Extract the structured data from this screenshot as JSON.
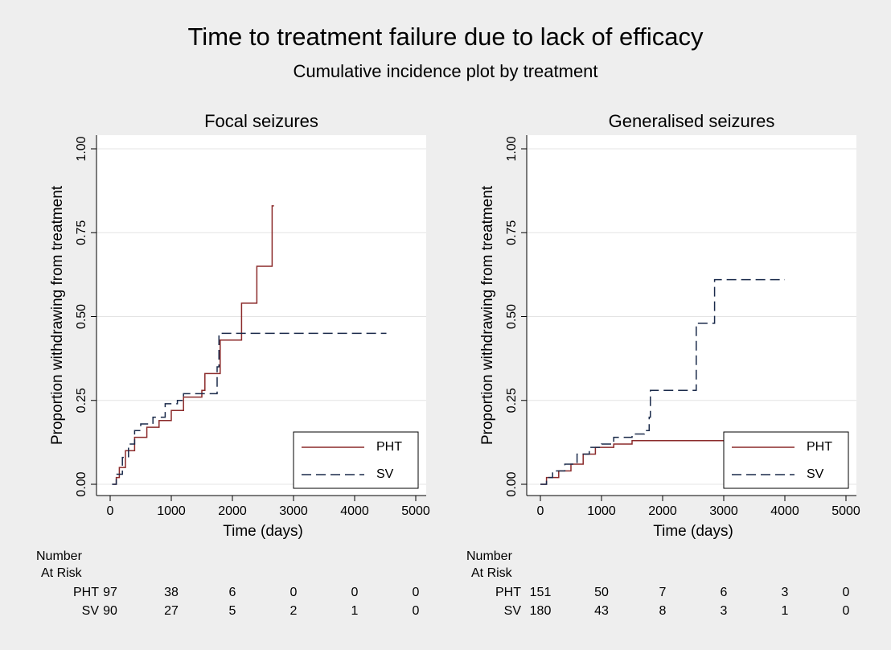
{
  "title": "Time to treatment failure due to lack of efficacy",
  "subtitle": "Cumulative incidence plot by treatment",
  "chart_data": [
    {
      "type": "step",
      "title": "Focal seizures",
      "y_label": "Proportion withdrawing from treatment",
      "x_label": "Time (days)",
      "xlim": [
        0,
        5000
      ],
      "xticks": [
        0,
        1000,
        2000,
        3000,
        4000,
        5000
      ],
      "ylim": [
        0,
        1
      ],
      "yticks": [
        {
          "value": 0,
          "label": "0.00"
        },
        {
          "value": 0.25,
          "label": "0.25"
        },
        {
          "value": 0.5,
          "label": "0.50"
        },
        {
          "value": 0.75,
          "label": "0.75"
        },
        {
          "value": 1,
          "label": "1.00"
        }
      ],
      "grid": true,
      "legend": "lower right",
      "series": [
        {
          "name": "PHT",
          "color": "#8b2a2a",
          "dashed": false,
          "x": [
            50,
            100,
            150,
            250,
            400,
            600,
            800,
            1000,
            1200,
            1500,
            1550,
            1800,
            2150,
            2400,
            2650,
            2680
          ],
          "values": [
            0,
            0.02,
            0.05,
            0.1,
            0.14,
            0.17,
            0.19,
            0.22,
            0.26,
            0.28,
            0.33,
            0.43,
            0.54,
            0.65,
            0.83,
            0.83
          ]
        },
        {
          "name": "SV",
          "color": "#1a2a4a",
          "dashed": true,
          "x": [
            30,
            100,
            200,
            300,
            400,
            500,
            700,
            900,
            1100,
            1200,
            1750,
            1780,
            4520
          ],
          "values": [
            0,
            0.03,
            0.08,
            0.12,
            0.16,
            0.18,
            0.2,
            0.24,
            0.25,
            0.27,
            0.35,
            0.45,
            0.45
          ]
        }
      ],
      "risk_header": "Number",
      "risk_header2": "At Risk",
      "risk_table": [
        {
          "name": "PHT",
          "values": [
            97,
            38,
            6,
            0,
            0,
            0
          ]
        },
        {
          "name": "SV",
          "values": [
            90,
            27,
            5,
            2,
            1,
            0
          ]
        }
      ]
    },
    {
      "type": "step",
      "title": "Generalised seizures",
      "y_label": "Proportion withdrawing from treatment",
      "x_label": "Time (days)",
      "xlim": [
        0,
        5000
      ],
      "xticks": [
        0,
        1000,
        2000,
        3000,
        4000,
        5000
      ],
      "ylim": [
        0,
        1
      ],
      "yticks": [
        {
          "value": 0,
          "label": "0.00"
        },
        {
          "value": 0.25,
          "label": "0.25"
        },
        {
          "value": 0.5,
          "label": "0.50"
        },
        {
          "value": 0.75,
          "label": "0.75"
        },
        {
          "value": 1,
          "label": "1.00"
        }
      ],
      "grid": true,
      "legend": "lower right",
      "series": [
        {
          "name": "PHT",
          "color": "#8b2a2a",
          "dashed": false,
          "x": [
            0,
            100,
            300,
            500,
            700,
            900,
            1200,
            1500,
            3300
          ],
          "values": [
            0,
            0.02,
            0.04,
            0.06,
            0.09,
            0.11,
            0.12,
            0.13,
            0.13
          ]
        },
        {
          "name": "SV",
          "color": "#1a2a4a",
          "dashed": true,
          "x": [
            0,
            100,
            200,
            400,
            600,
            800,
            1000,
            1200,
            1500,
            1700,
            1780,
            1800,
            2550,
            2850,
            4000
          ],
          "values": [
            0,
            0.02,
            0.04,
            0.06,
            0.09,
            0.11,
            0.12,
            0.14,
            0.15,
            0.16,
            0.2,
            0.28,
            0.48,
            0.61,
            0.61
          ]
        }
      ],
      "risk_header": "Number",
      "risk_header2": "At Risk",
      "risk_table": [
        {
          "name": "PHT",
          "values": [
            151,
            50,
            7,
            6,
            3,
            0
          ]
        },
        {
          "name": "SV",
          "values": [
            180,
            43,
            8,
            3,
            1,
            0
          ]
        }
      ]
    }
  ]
}
